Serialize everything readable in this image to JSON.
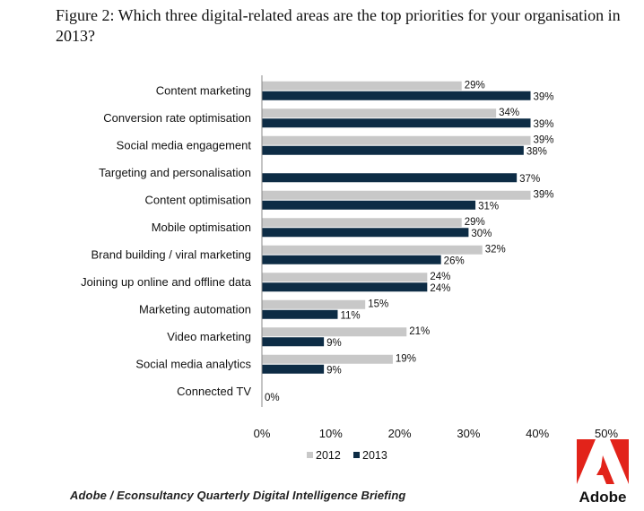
{
  "figure": {
    "title": "Figure 2: Which three digital-related areas are the top priorities for your organisation in 2013?"
  },
  "chart_data": {
    "type": "bar",
    "orientation": "horizontal",
    "categories": [
      "Content marketing",
      "Conversion rate optimisation",
      "Social media engagement",
      "Targeting and personalisation",
      "Content optimisation",
      "Mobile optimisation",
      "Brand building / viral marketing",
      "Joining up online and offline data",
      "Marketing automation",
      "Video marketing",
      "Social media analytics",
      "Connected TV"
    ],
    "series": [
      {
        "name": "2012",
        "color": "#c8c8c8",
        "values": [
          29,
          34,
          39,
          null,
          39,
          29,
          32,
          24,
          15,
          21,
          19,
          null
        ]
      },
      {
        "name": "2013",
        "color": "#0d2c45",
        "values": [
          39,
          39,
          38,
          37,
          31,
          30,
          26,
          24,
          11,
          9,
          9,
          0
        ]
      }
    ],
    "xlim": [
      0,
      50
    ],
    "xticks": [
      0,
      10,
      20,
      30,
      40,
      50
    ],
    "tick_suffix": "%",
    "value_suffix": "%",
    "legend_position": "bottom-center",
    "xlabel": "",
    "ylabel": ""
  },
  "source": "Adobe / Econsultancy  Quarterly  Digital Intelligence  Briefing",
  "logo": {
    "text": "Adobe",
    "color": "#e2231a"
  }
}
